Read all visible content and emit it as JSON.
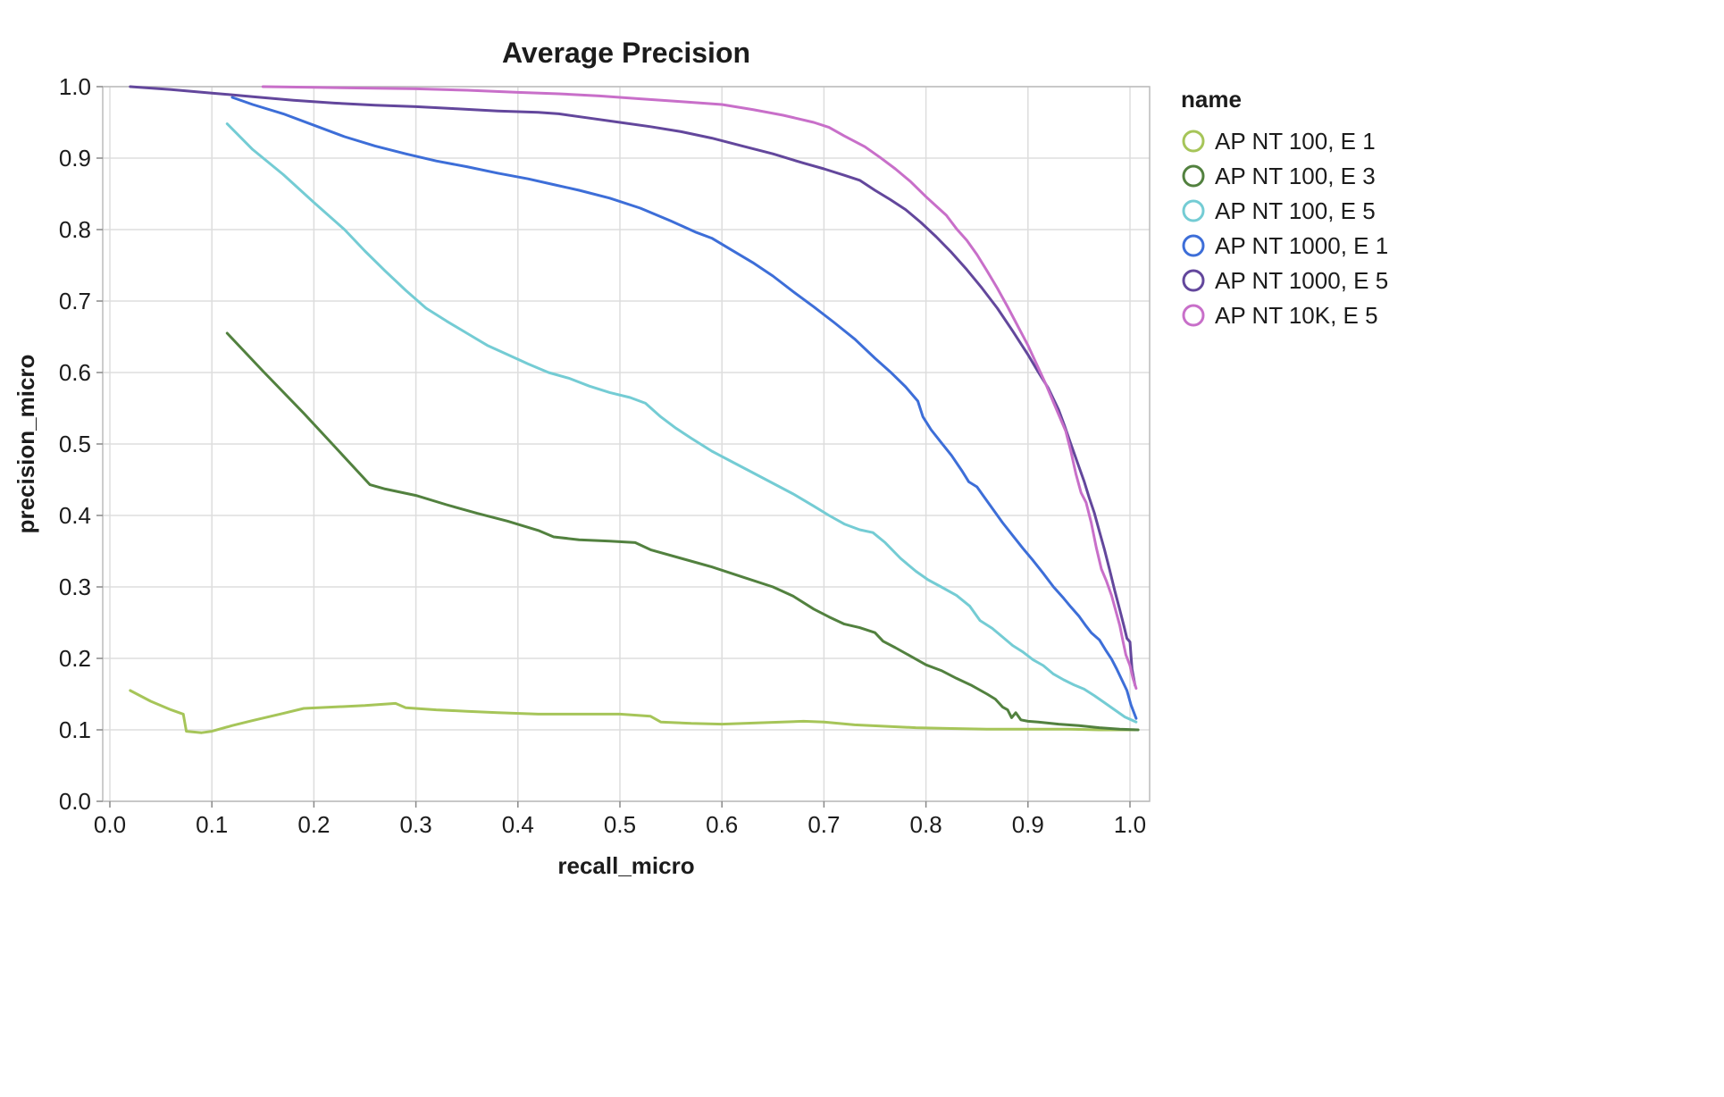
{
  "chart_data": {
    "type": "line",
    "title": "Average Precision",
    "xlabel": "recall_micro",
    "ylabel": "precision_micro",
    "legend_title": "name",
    "legend_position": "right",
    "grid": true,
    "xlim": [
      0.0,
      1.0
    ],
    "ylim": [
      0.0,
      1.0
    ],
    "x_ticks": [
      0.0,
      0.1,
      0.2,
      0.3,
      0.4,
      0.5,
      0.6,
      0.7,
      0.8,
      0.9,
      1.0
    ],
    "y_ticks": [
      0.0,
      0.1,
      0.2,
      0.3,
      0.4,
      0.5,
      0.6,
      0.7,
      0.8,
      0.9,
      1.0
    ],
    "style": {
      "grid_color": "#dddddd",
      "domain_color": "#bbbbbb",
      "tick_color": "#888888",
      "label_color": "#1c1c1c",
      "background": "#ffffff"
    },
    "series": [
      {
        "name": "AP NT 100, E 1",
        "color": "#a6c559",
        "points": [
          [
            0.02,
            0.155
          ],
          [
            0.04,
            0.14
          ],
          [
            0.06,
            0.128
          ],
          [
            0.072,
            0.122
          ],
          [
            0.075,
            0.098
          ],
          [
            0.09,
            0.096
          ],
          [
            0.1,
            0.098
          ],
          [
            0.12,
            0.106
          ],
          [
            0.14,
            0.113
          ],
          [
            0.17,
            0.123
          ],
          [
            0.19,
            0.13
          ],
          [
            0.22,
            0.132
          ],
          [
            0.25,
            0.134
          ],
          [
            0.28,
            0.137
          ],
          [
            0.29,
            0.131
          ],
          [
            0.32,
            0.128
          ],
          [
            0.35,
            0.126
          ],
          [
            0.38,
            0.124
          ],
          [
            0.42,
            0.122
          ],
          [
            0.46,
            0.122
          ],
          [
            0.5,
            0.122
          ],
          [
            0.53,
            0.119
          ],
          [
            0.54,
            0.111
          ],
          [
            0.57,
            0.109
          ],
          [
            0.6,
            0.108
          ],
          [
            0.64,
            0.11
          ],
          [
            0.68,
            0.112
          ],
          [
            0.7,
            0.111
          ],
          [
            0.73,
            0.107
          ],
          [
            0.76,
            0.105
          ],
          [
            0.79,
            0.103
          ],
          [
            0.82,
            0.102
          ],
          [
            0.86,
            0.101
          ],
          [
            0.9,
            0.101
          ],
          [
            0.94,
            0.101
          ],
          [
            0.97,
            0.1
          ],
          [
            1.005,
            0.1
          ]
        ]
      },
      {
        "name": "AP NT 100, E 3",
        "color": "#52813f",
        "points": [
          [
            0.115,
            0.655
          ],
          [
            0.15,
            0.602
          ],
          [
            0.19,
            0.543
          ],
          [
            0.22,
            0.497
          ],
          [
            0.255,
            0.443
          ],
          [
            0.27,
            0.437
          ],
          [
            0.3,
            0.428
          ],
          [
            0.33,
            0.415
          ],
          [
            0.36,
            0.403
          ],
          [
            0.39,
            0.392
          ],
          [
            0.42,
            0.379
          ],
          [
            0.435,
            0.37
          ],
          [
            0.46,
            0.366
          ],
          [
            0.49,
            0.364
          ],
          [
            0.515,
            0.362
          ],
          [
            0.53,
            0.352
          ],
          [
            0.56,
            0.34
          ],
          [
            0.59,
            0.328
          ],
          [
            0.62,
            0.314
          ],
          [
            0.65,
            0.3
          ],
          [
            0.67,
            0.287
          ],
          [
            0.69,
            0.269
          ],
          [
            0.705,
            0.258
          ],
          [
            0.72,
            0.248
          ],
          [
            0.735,
            0.243
          ],
          [
            0.75,
            0.236
          ],
          [
            0.758,
            0.224
          ],
          [
            0.77,
            0.215
          ],
          [
            0.785,
            0.203
          ],
          [
            0.8,
            0.191
          ],
          [
            0.815,
            0.183
          ],
          [
            0.83,
            0.172
          ],
          [
            0.845,
            0.162
          ],
          [
            0.86,
            0.15
          ],
          [
            0.868,
            0.143
          ],
          [
            0.875,
            0.132
          ],
          [
            0.88,
            0.128
          ],
          [
            0.884,
            0.117
          ],
          [
            0.888,
            0.124
          ],
          [
            0.893,
            0.114
          ],
          [
            0.9,
            0.112
          ],
          [
            0.91,
            0.111
          ],
          [
            0.93,
            0.108
          ],
          [
            0.95,
            0.106
          ],
          [
            0.97,
            0.103
          ],
          [
            0.99,
            0.101
          ],
          [
            1.008,
            0.1
          ]
        ]
      },
      {
        "name": "AP NT 100, E 5",
        "color": "#74ccd4",
        "points": [
          [
            0.115,
            0.948
          ],
          [
            0.14,
            0.912
          ],
          [
            0.17,
            0.877
          ],
          [
            0.2,
            0.838
          ],
          [
            0.23,
            0.8
          ],
          [
            0.25,
            0.77
          ],
          [
            0.27,
            0.742
          ],
          [
            0.29,
            0.715
          ],
          [
            0.31,
            0.69
          ],
          [
            0.33,
            0.672
          ],
          [
            0.35,
            0.655
          ],
          [
            0.37,
            0.638
          ],
          [
            0.39,
            0.625
          ],
          [
            0.41,
            0.612
          ],
          [
            0.43,
            0.6
          ],
          [
            0.45,
            0.592
          ],
          [
            0.47,
            0.581
          ],
          [
            0.49,
            0.572
          ],
          [
            0.51,
            0.565
          ],
          [
            0.525,
            0.557
          ],
          [
            0.54,
            0.538
          ],
          [
            0.555,
            0.522
          ],
          [
            0.57,
            0.508
          ],
          [
            0.59,
            0.49
          ],
          [
            0.61,
            0.475
          ],
          [
            0.63,
            0.46
          ],
          [
            0.65,
            0.445
          ],
          [
            0.67,
            0.43
          ],
          [
            0.69,
            0.413
          ],
          [
            0.705,
            0.4
          ],
          [
            0.72,
            0.388
          ],
          [
            0.735,
            0.38
          ],
          [
            0.748,
            0.376
          ],
          [
            0.76,
            0.362
          ],
          [
            0.775,
            0.34
          ],
          [
            0.79,
            0.322
          ],
          [
            0.802,
            0.31
          ],
          [
            0.815,
            0.3
          ],
          [
            0.83,
            0.288
          ],
          [
            0.843,
            0.273
          ],
          [
            0.853,
            0.253
          ],
          [
            0.865,
            0.242
          ],
          [
            0.875,
            0.23
          ],
          [
            0.885,
            0.218
          ],
          [
            0.895,
            0.209
          ],
          [
            0.905,
            0.198
          ],
          [
            0.915,
            0.19
          ],
          [
            0.925,
            0.178
          ],
          [
            0.935,
            0.17
          ],
          [
            0.945,
            0.163
          ],
          [
            0.955,
            0.157
          ],
          [
            0.965,
            0.148
          ],
          [
            0.975,
            0.138
          ],
          [
            0.985,
            0.128
          ],
          [
            0.995,
            0.118
          ],
          [
            1.006,
            0.111
          ]
        ]
      },
      {
        "name": "AP NT 1000, E 1",
        "color": "#3d6ed8",
        "points": [
          [
            0.12,
            0.985
          ],
          [
            0.14,
            0.975
          ],
          [
            0.17,
            0.962
          ],
          [
            0.2,
            0.946
          ],
          [
            0.23,
            0.93
          ],
          [
            0.26,
            0.917
          ],
          [
            0.29,
            0.906
          ],
          [
            0.32,
            0.896
          ],
          [
            0.35,
            0.888
          ],
          [
            0.38,
            0.879
          ],
          [
            0.41,
            0.871
          ],
          [
            0.435,
            0.863
          ],
          [
            0.46,
            0.855
          ],
          [
            0.49,
            0.844
          ],
          [
            0.52,
            0.83
          ],
          [
            0.55,
            0.812
          ],
          [
            0.575,
            0.796
          ],
          [
            0.59,
            0.788
          ],
          [
            0.61,
            0.771
          ],
          [
            0.63,
            0.754
          ],
          [
            0.65,
            0.735
          ],
          [
            0.67,
            0.713
          ],
          [
            0.69,
            0.692
          ],
          [
            0.71,
            0.67
          ],
          [
            0.73,
            0.647
          ],
          [
            0.75,
            0.62
          ],
          [
            0.765,
            0.601
          ],
          [
            0.78,
            0.58
          ],
          [
            0.792,
            0.56
          ],
          [
            0.797,
            0.538
          ],
          [
            0.805,
            0.52
          ],
          [
            0.815,
            0.502
          ],
          [
            0.825,
            0.484
          ],
          [
            0.835,
            0.463
          ],
          [
            0.842,
            0.447
          ],
          [
            0.85,
            0.44
          ],
          [
            0.857,
            0.426
          ],
          [
            0.866,
            0.408
          ],
          [
            0.875,
            0.39
          ],
          [
            0.885,
            0.372
          ],
          [
            0.895,
            0.354
          ],
          [
            0.905,
            0.337
          ],
          [
            0.915,
            0.319
          ],
          [
            0.925,
            0.3
          ],
          [
            0.935,
            0.284
          ],
          [
            0.942,
            0.272
          ],
          [
            0.95,
            0.259
          ],
          [
            0.956,
            0.247
          ],
          [
            0.962,
            0.236
          ],
          [
            0.97,
            0.226
          ],
          [
            0.976,
            0.212
          ],
          [
            0.982,
            0.199
          ],
          [
            0.987,
            0.185
          ],
          [
            0.992,
            0.17
          ],
          [
            0.997,
            0.155
          ],
          [
            1.001,
            0.135
          ],
          [
            1.006,
            0.116
          ]
        ]
      },
      {
        "name": "AP NT 1000, E 5",
        "color": "#63479c",
        "points": [
          [
            0.02,
            1.0
          ],
          [
            0.06,
            0.996
          ],
          [
            0.1,
            0.991
          ],
          [
            0.14,
            0.986
          ],
          [
            0.18,
            0.981
          ],
          [
            0.22,
            0.977
          ],
          [
            0.26,
            0.974
          ],
          [
            0.3,
            0.972
          ],
          [
            0.34,
            0.969
          ],
          [
            0.38,
            0.966
          ],
          [
            0.42,
            0.964
          ],
          [
            0.44,
            0.962
          ],
          [
            0.47,
            0.956
          ],
          [
            0.5,
            0.95
          ],
          [
            0.53,
            0.944
          ],
          [
            0.56,
            0.937
          ],
          [
            0.59,
            0.928
          ],
          [
            0.62,
            0.917
          ],
          [
            0.65,
            0.906
          ],
          [
            0.68,
            0.893
          ],
          [
            0.7,
            0.885
          ],
          [
            0.72,
            0.876
          ],
          [
            0.735,
            0.869
          ],
          [
            0.75,
            0.855
          ],
          [
            0.765,
            0.842
          ],
          [
            0.78,
            0.828
          ],
          [
            0.795,
            0.81
          ],
          [
            0.81,
            0.79
          ],
          [
            0.825,
            0.768
          ],
          [
            0.84,
            0.744
          ],
          [
            0.855,
            0.718
          ],
          [
            0.87,
            0.69
          ],
          [
            0.885,
            0.658
          ],
          [
            0.9,
            0.625
          ],
          [
            0.91,
            0.601
          ],
          [
            0.92,
            0.578
          ],
          [
            0.93,
            0.548
          ],
          [
            0.936,
            0.525
          ],
          [
            0.942,
            0.5
          ],
          [
            0.95,
            0.468
          ],
          [
            0.955,
            0.448
          ],
          [
            0.96,
            0.425
          ],
          [
            0.965,
            0.404
          ],
          [
            0.97,
            0.378
          ],
          [
            0.975,
            0.352
          ],
          [
            0.98,
            0.324
          ],
          [
            0.985,
            0.295
          ],
          [
            0.99,
            0.268
          ],
          [
            0.994,
            0.246
          ],
          [
            0.997,
            0.228
          ],
          [
            1.0,
            0.223
          ],
          [
            1.002,
            0.185
          ],
          [
            1.005,
            0.162
          ]
        ]
      },
      {
        "name": "AP NT 10K, E 5",
        "color": "#c86fc9",
        "points": [
          [
            0.15,
            1.0
          ],
          [
            0.2,
            0.999
          ],
          [
            0.25,
            0.998
          ],
          [
            0.3,
            0.997
          ],
          [
            0.35,
            0.995
          ],
          [
            0.4,
            0.992
          ],
          [
            0.44,
            0.99
          ],
          [
            0.48,
            0.987
          ],
          [
            0.52,
            0.983
          ],
          [
            0.56,
            0.979
          ],
          [
            0.6,
            0.975
          ],
          [
            0.63,
            0.968
          ],
          [
            0.66,
            0.96
          ],
          [
            0.69,
            0.95
          ],
          [
            0.705,
            0.943
          ],
          [
            0.72,
            0.931
          ],
          [
            0.74,
            0.916
          ],
          [
            0.755,
            0.901
          ],
          [
            0.77,
            0.885
          ],
          [
            0.785,
            0.867
          ],
          [
            0.8,
            0.846
          ],
          [
            0.81,
            0.833
          ],
          [
            0.82,
            0.82
          ],
          [
            0.83,
            0.801
          ],
          [
            0.84,
            0.785
          ],
          [
            0.85,
            0.765
          ],
          [
            0.86,
            0.742
          ],
          [
            0.87,
            0.718
          ],
          [
            0.88,
            0.692
          ],
          [
            0.89,
            0.665
          ],
          [
            0.9,
            0.638
          ],
          [
            0.91,
            0.607
          ],
          [
            0.918,
            0.582
          ],
          [
            0.925,
            0.558
          ],
          [
            0.931,
            0.538
          ],
          [
            0.937,
            0.518
          ],
          [
            0.942,
            0.49
          ],
          [
            0.947,
            0.458
          ],
          [
            0.952,
            0.432
          ],
          [
            0.957,
            0.418
          ],
          [
            0.962,
            0.39
          ],
          [
            0.967,
            0.355
          ],
          [
            0.972,
            0.325
          ],
          [
            0.977,
            0.308
          ],
          [
            0.982,
            0.288
          ],
          [
            0.986,
            0.267
          ],
          [
            0.99,
            0.246
          ],
          [
            0.993,
            0.225
          ],
          [
            0.996,
            0.205
          ],
          [
            1.0,
            0.19
          ],
          [
            1.003,
            0.172
          ],
          [
            1.006,
            0.158
          ]
        ]
      }
    ]
  }
}
